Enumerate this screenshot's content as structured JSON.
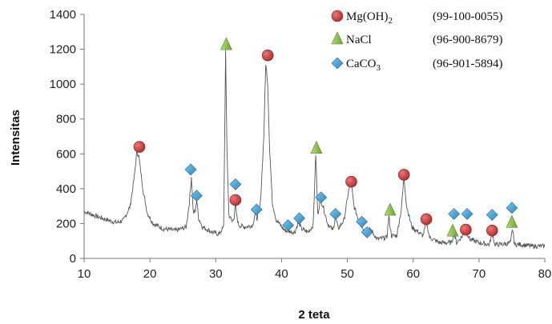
{
  "chart_data": {
    "type": "line",
    "xlabel": "2 teta",
    "ylabel": "Intensitas",
    "xlim": [
      10,
      80
    ],
    "ylim": [
      0,
      1400
    ],
    "x_ticks": [
      10,
      20,
      30,
      40,
      50,
      60,
      70,
      80
    ],
    "y_ticks": [
      0,
      200,
      400,
      600,
      800,
      1000,
      1200,
      1400
    ],
    "grid": false,
    "legend_position": "top-right",
    "line_color": "#555555",
    "series": [
      {
        "values_x": [
          10,
          12,
          14,
          15,
          16,
          17,
          17.6,
          18.0,
          18.3,
          18.6,
          19.0,
          19.6,
          20.5,
          22,
          24,
          25.5,
          26.0,
          26.3,
          26.6,
          26.9,
          27.1,
          27.4,
          28,
          29.5,
          30.5,
          31.2,
          31.5,
          31.7,
          32.0,
          32.5,
          32.8,
          33.0,
          33.2,
          33.5,
          34.5,
          35.6,
          36.0,
          36.3,
          36.8,
          37.3,
          37.6,
          37.9,
          38.2,
          38.6,
          39.2,
          40.5,
          42.0,
          42.6,
          43.0,
          44.0,
          44.8,
          45.2,
          45.5,
          45.9,
          46.3,
          47.0,
          47.8,
          48.2,
          48.6,
          49.5,
          50.2,
          50.6,
          51.0,
          51.8,
          53.0,
          53.5,
          54.5,
          56.0,
          56.3,
          56.7,
          57.5,
          58.2,
          58.6,
          59.0,
          59.8,
          61.5,
          62.0,
          62.5,
          64.0,
          65.8,
          66.2,
          66.6,
          67.5,
          68.0,
          68.6,
          70.0,
          71.6,
          72.0,
          72.4,
          73.5,
          74.8,
          75.1,
          75.4,
          76.5,
          78,
          80
        ],
        "values_y": [
          270,
          240,
          215,
          205,
          220,
          300,
          460,
          610,
          590,
          500,
          380,
          260,
          200,
          170,
          160,
          180,
          320,
          470,
          260,
          270,
          340,
          230,
          180,
          150,
          140,
          180,
          1190,
          620,
          250,
          210,
          240,
          310,
          240,
          190,
          180,
          190,
          260,
          230,
          320,
          700,
          1120,
          1000,
          620,
          320,
          220,
          160,
          150,
          210,
          170,
          150,
          190,
          600,
          250,
          340,
          300,
          200,
          160,
          240,
          170,
          220,
          390,
          430,
          300,
          210,
          130,
          170,
          110,
          120,
          240,
          130,
          130,
          280,
          470,
          300,
          180,
          130,
          210,
          120,
          90,
          90,
          140,
          90,
          130,
          160,
          110,
          90,
          80,
          150,
          80,
          80,
          90,
          170,
          80,
          80,
          70,
          70
        ]
      }
    ],
    "legend": [
      {
        "marker": "circle",
        "label": "Mg(OH)",
        "sub": "2",
        "code": "(99-100-0055)"
      },
      {
        "marker": "triangle",
        "label": "NaCl",
        "sub": "",
        "code": "(96-900-8679)"
      },
      {
        "marker": "diamond",
        "label": "CaCO",
        "sub": "3",
        "code": "(96-901-5894)"
      }
    ],
    "annotations": [
      {
        "marker": "circle",
        "x": 18.4,
        "y": 640
      },
      {
        "marker": "circle",
        "x": 33.0,
        "y": 335
      },
      {
        "marker": "circle",
        "x": 37.9,
        "y": 1165
      },
      {
        "marker": "circle",
        "x": 50.6,
        "y": 440
      },
      {
        "marker": "circle",
        "x": 58.6,
        "y": 480
      },
      {
        "marker": "circle",
        "x": 62.0,
        "y": 225
      },
      {
        "marker": "circle",
        "x": 68.0,
        "y": 165
      },
      {
        "marker": "circle",
        "x": 72.0,
        "y": 160
      },
      {
        "marker": "triangle",
        "x": 31.6,
        "y": 1225
      },
      {
        "marker": "triangle",
        "x": 45.3,
        "y": 630
      },
      {
        "marker": "triangle",
        "x": 56.5,
        "y": 275
      },
      {
        "marker": "triangle",
        "x": 66.0,
        "y": 155
      },
      {
        "marker": "triangle",
        "x": 75.0,
        "y": 205
      },
      {
        "marker": "diamond",
        "x": 26.2,
        "y": 510
      },
      {
        "marker": "diamond",
        "x": 27.1,
        "y": 360
      },
      {
        "marker": "diamond",
        "x": 33.0,
        "y": 425
      },
      {
        "marker": "diamond",
        "x": 36.2,
        "y": 280
      },
      {
        "marker": "diamond",
        "x": 41.0,
        "y": 190
      },
      {
        "marker": "diamond",
        "x": 42.7,
        "y": 230
      },
      {
        "marker": "diamond",
        "x": 46.0,
        "y": 350
      },
      {
        "marker": "diamond",
        "x": 48.2,
        "y": 255
      },
      {
        "marker": "diamond",
        "x": 52.2,
        "y": 210
      },
      {
        "marker": "diamond",
        "x": 53.0,
        "y": 150
      },
      {
        "marker": "diamond",
        "x": 66.2,
        "y": 255
      },
      {
        "marker": "diamond",
        "x": 68.2,
        "y": 255
      },
      {
        "marker": "diamond",
        "x": 72.0,
        "y": 250
      },
      {
        "marker": "diamond",
        "x": 75.0,
        "y": 290
      }
    ],
    "marker_colors": {
      "circle": "#c0393b",
      "triangle": "#8cbf4a",
      "diamond": "#3a9fd6"
    }
  }
}
